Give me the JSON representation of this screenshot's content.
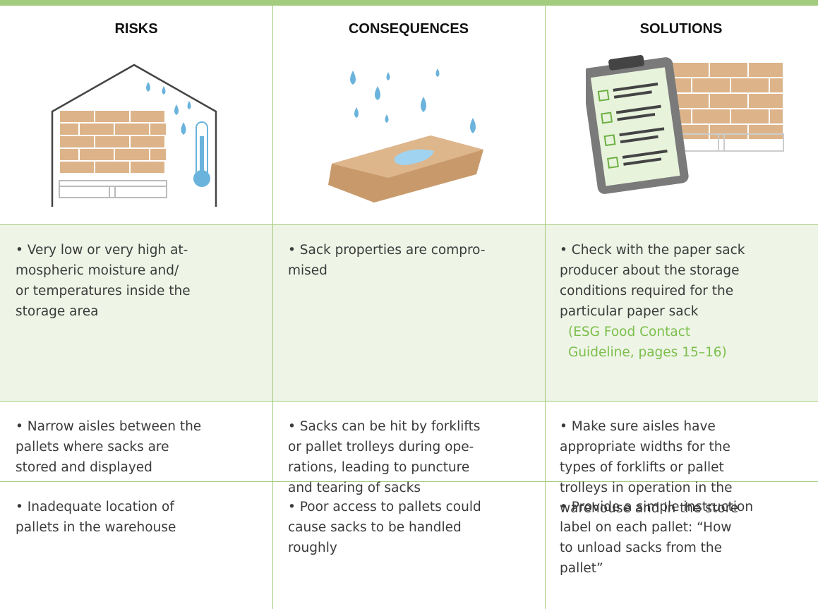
{
  "table": {
    "headers": [
      "RISKS",
      "CONSEQUENCES",
      "SOLUTIONS"
    ],
    "rows": [
      [
        {
          "lines": [
            "• Very low or very high at-",
            "mospheric moisture and/",
            "or temperatures inside the",
            "storage area"
          ]
        },
        {
          "lines": [
            "• Sack properties are compro-",
            "mised"
          ]
        },
        {
          "lines": [
            "• Check with the paper sack",
            "producer about the storage",
            "conditions required for the",
            "particular paper sack"
          ],
          "link": [
            "(ESG Food Contact",
            "Guideline, pages 15–16)"
          ]
        }
      ],
      [
        {
          "lines": [
            "• Narrow aisles between the",
            "pallets where sacks are",
            "stored and displayed"
          ]
        },
        {
          "lines": [
            "• Sacks can be hit by forklifts",
            "or pallet trolleys during ope-",
            "rations, leading to puncture",
            "and tearing of sacks"
          ]
        },
        {
          "lines": [
            "• Make sure aisles have",
            "appropriate widths for the",
            "types of forklifts or pallet",
            "trolleys in operation in the",
            "warehouse and in the store"
          ]
        }
      ],
      [
        {
          "lines": [
            "• Inadequate location of",
            "pallets in the warehouse"
          ]
        },
        {
          "lines": [
            "• Poor access to pallets could",
            "cause sacks to be handled",
            "roughly"
          ]
        },
        {
          "lines": [
            "• Provide a simple instruction",
            "label on each pallet: “How",
            "to unload sacks from the",
            "pallet”"
          ]
        }
      ]
    ]
  }
}
